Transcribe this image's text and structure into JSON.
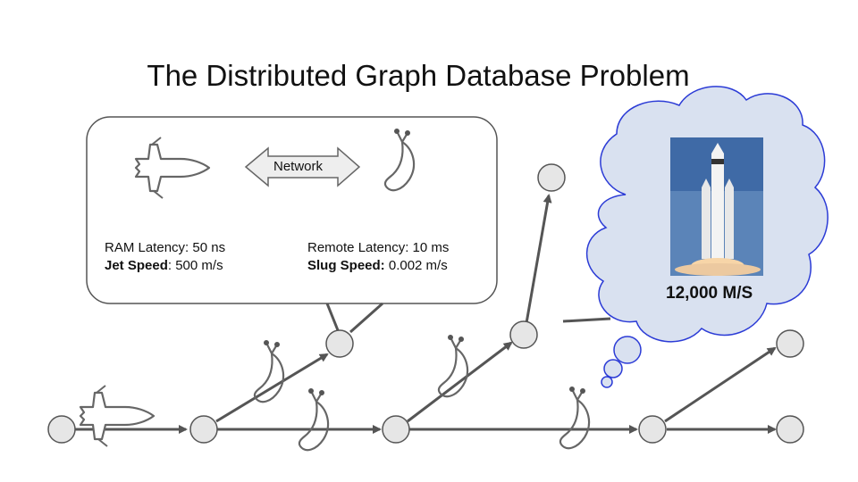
{
  "title": "The Distributed Graph Database Problem",
  "callout": {
    "network_label": "Network",
    "left": {
      "line1": "RAM Latency: 50 ns",
      "line2_bold": "Jet Speed",
      "line2_rest": ": 500 m/s"
    },
    "right": {
      "line1": "Remote Latency: 10 ms",
      "line2_bold": "Slug Speed:",
      "line2_rest": " 0.002 m/s"
    }
  },
  "thought_bubble": {
    "speed_label": "12,000 M/S"
  },
  "colors": {
    "node_fill": "#e6e6e6",
    "edge": "#555555",
    "cloud_fill": "#d9e1f0",
    "cloud_stroke": "#2b3bd6",
    "icon": "#666666"
  },
  "icons": [
    "jet-icon",
    "slug-icon",
    "rocket-icon"
  ]
}
